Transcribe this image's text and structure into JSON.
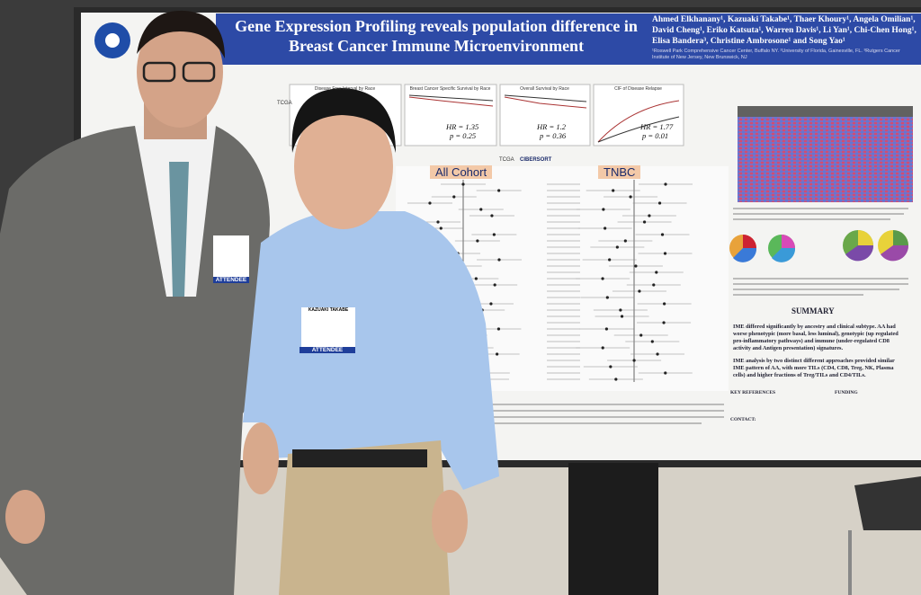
{
  "poster": {
    "title": "Gene Expression Profiling reveals population difference in Breast Cancer Immune Microenvironment",
    "authors": "Ahmed Elkhanany¹, Kazuaki Takabe¹, Thaer Khoury¹, Angela Omilian¹, David Cheng¹, Eriko Katsuta¹, Warren Davis¹, Li Yan¹, Chi-Chen Hong¹, Elisa Bandera³, Christine Ambrosone¹ and Song Yao¹",
    "affiliations": "¹Roswell Park Comprehensive Cancer Center, Buffalo NY. ²University of Florida, Gainesville, FL. ³Rutgers Cancer Institute of New Jersey, New Brunswick, NJ",
    "plots": [
      {
        "title": "Disease Free Interval by Race",
        "hr": "",
        "p": ""
      },
      {
        "title": "Breast Cancer Specific Survival by Race",
        "hr": "HR = 1.35",
        "p": "p = 0.25"
      },
      {
        "title": "Overall Survival by Race",
        "hr": "HR = 1.2",
        "p": "p = 0.36"
      },
      {
        "title": "CIF of Disease Relapse",
        "hr": "HR = 1.77",
        "p": "p = 0.01"
      }
    ],
    "tcga": "TCGA",
    "cibersort": "CIBERSORT",
    "panels": [
      "All Cohort",
      "TNBC"
    ],
    "summary": {
      "heading": "SUMMARY",
      "bullets": [
        "IME differed significantly by ancestry and clinical subtype. AA had worse phenotypic (more basal, less luminal), genotypic (up regulated pro-inflammatory pathways) and immune (under-regulated CD8 activity and Antigen presentation) signatures.",
        "IME analysis by two distinct different approaches provided similar IME pattern of AA, with more TILs (CD4, CD8, Treg, NK, Plasma cells) and higher fractions of Treg/TILs and CD4/TILs."
      ]
    },
    "footer": {
      "references": "KEY REFERENCES",
      "funding": "FUNDING",
      "contact": "CONTACT:"
    }
  },
  "badges": [
    {
      "name": "",
      "role": "ATTENDEE"
    },
    {
      "name": "KAZUAKI TAKABE",
      "role": "ATTENDEE"
    }
  ]
}
